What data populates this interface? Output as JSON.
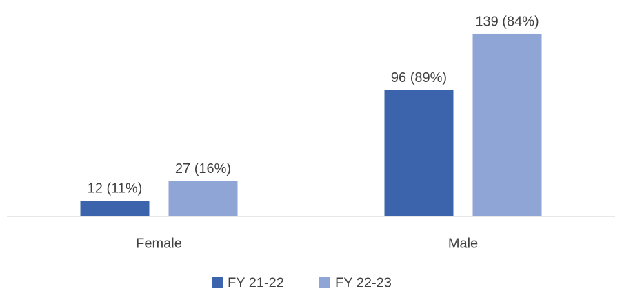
{
  "chart_data": {
    "type": "bar",
    "categories": [
      "Female",
      "Male"
    ],
    "series": [
      {
        "name": "FY 21-22",
        "color": "#3c64ad",
        "values": [
          12,
          96
        ],
        "value_labels": [
          "12 (11%)",
          "96 (89%)"
        ]
      },
      {
        "name": "FY 22-23",
        "color": "#8fa5d6",
        "values": [
          27,
          139
        ],
        "value_labels": [
          "27 (16%)",
          "139 (84%)"
        ]
      }
    ],
    "ylim": [
      0,
      150
    ],
    "legend": "bottom"
  }
}
